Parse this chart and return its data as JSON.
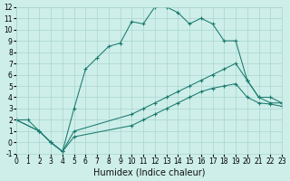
{
  "xlabel": "Humidex (Indice chaleur)",
  "background_color": "#cdeee9",
  "grid_color": "#aad5ce",
  "line_color": "#1a7a6e",
  "xlim": [
    0,
    23
  ],
  "ylim": [
    -1,
    12
  ],
  "xticks": [
    0,
    1,
    2,
    3,
    4,
    5,
    6,
    7,
    8,
    9,
    10,
    11,
    12,
    13,
    14,
    15,
    16,
    17,
    18,
    19,
    20,
    21,
    22,
    23
  ],
  "yticks": [
    -1,
    0,
    1,
    2,
    3,
    4,
    5,
    6,
    7,
    8,
    9,
    10,
    11,
    12
  ],
  "line1_x": [
    0,
    1,
    2,
    3,
    4,
    5,
    6,
    7,
    8,
    9,
    10,
    11,
    12,
    13,
    14,
    15,
    16,
    17,
    18,
    19,
    20,
    21,
    22,
    23
  ],
  "line1_y": [
    2,
    2,
    1,
    0,
    -0.8,
    3,
    6.5,
    7.5,
    8.5,
    8.8,
    10.7,
    10.5,
    12,
    12,
    11.5,
    10.5,
    11,
    10.5,
    9,
    9,
    5.5,
    4,
    4,
    3.5
  ],
  "line2_x": [
    0,
    2,
    3,
    4,
    5,
    10,
    11,
    12,
    13,
    14,
    15,
    16,
    17,
    18,
    19,
    20,
    21,
    22,
    23
  ],
  "line2_y": [
    2,
    1,
    0,
    -0.8,
    1.0,
    2.5,
    3.0,
    3.5,
    4.0,
    4.5,
    5.0,
    5.5,
    6.0,
    6.5,
    7.0,
    5.5,
    4.0,
    3.5,
    3.5
  ],
  "line3_x": [
    0,
    2,
    3,
    4,
    5,
    10,
    11,
    12,
    13,
    14,
    15,
    16,
    17,
    18,
    19,
    20,
    21,
    22,
    23
  ],
  "line3_y": [
    2,
    1,
    0,
    -0.8,
    0.5,
    1.5,
    2.0,
    2.5,
    3.0,
    3.5,
    4.0,
    4.5,
    4.8,
    5.0,
    5.2,
    4.0,
    3.5,
    3.4,
    3.2
  ],
  "tick_fontsize": 5.5,
  "xlabel_fontsize": 7
}
